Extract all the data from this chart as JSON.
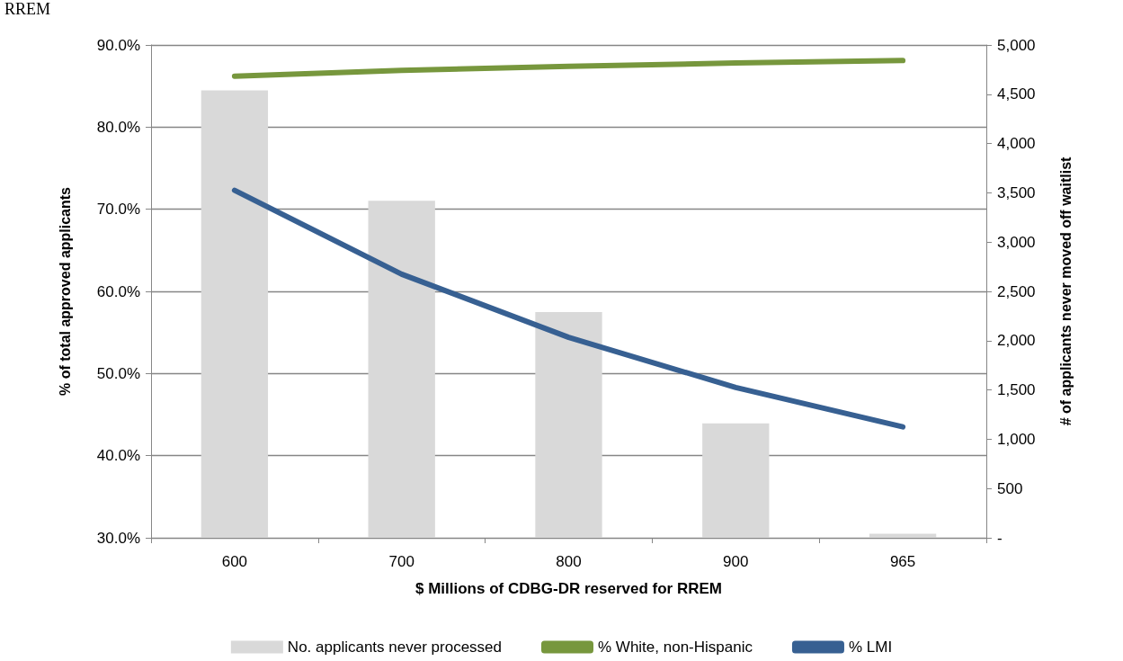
{
  "chart_data": {
    "type": "bar",
    "title": "RREM",
    "xlabel": "$ Millions of CDBG-DR reserved for RREM",
    "ylabel": "% of total approved applicants",
    "y2label": "# of applicants never moved off waitlist",
    "categories": [
      "600",
      "700",
      "800",
      "900",
      "965"
    ],
    "series": [
      {
        "name": "No. applicants never processed",
        "axis": "y2",
        "color": "#d9d9d9",
        "values": [
          4540,
          3420,
          2290,
          1160,
          40
        ]
      },
      {
        "name": "% White, non-Hispanic",
        "type": "line",
        "color": "#77973d",
        "values": [
          86.2,
          86.9,
          87.4,
          87.8,
          88.1
        ]
      },
      {
        "name": "% LMI",
        "type": "line",
        "color": "#376092",
        "values": [
          72.3,
          62.1,
          54.4,
          48.3,
          43.5
        ]
      }
    ],
    "ylim": [
      30,
      90
    ],
    "yticks": [
      {
        "value": 30,
        "label": "30.0%"
      },
      {
        "value": 40,
        "label": "40.0%"
      },
      {
        "value": 50,
        "label": "50.0%"
      },
      {
        "value": 60,
        "label": "60.0%"
      },
      {
        "value": 70,
        "label": "70.0%"
      },
      {
        "value": 80,
        "label": "80.0%"
      },
      {
        "value": 90,
        "label": "90.0%"
      }
    ],
    "y2lim": [
      0,
      5000
    ],
    "y2ticks": [
      {
        "value": 0,
        "label": "-"
      },
      {
        "value": 500,
        "label": "500"
      },
      {
        "value": 1000,
        "label": "1,000"
      },
      {
        "value": 1500,
        "label": "1,500"
      },
      {
        "value": 2000,
        "label": "2,000"
      },
      {
        "value": 2500,
        "label": "2,500"
      },
      {
        "value": 3000,
        "label": "3,000"
      },
      {
        "value": 3500,
        "label": "3,500"
      },
      {
        "value": 4000,
        "label": "4,000"
      },
      {
        "value": 4500,
        "label": "4,500"
      },
      {
        "value": 5000,
        "label": "5,000"
      }
    ],
    "grid": "y",
    "legend": "bottom",
    "marker": "none",
    "line_style": "solid"
  }
}
